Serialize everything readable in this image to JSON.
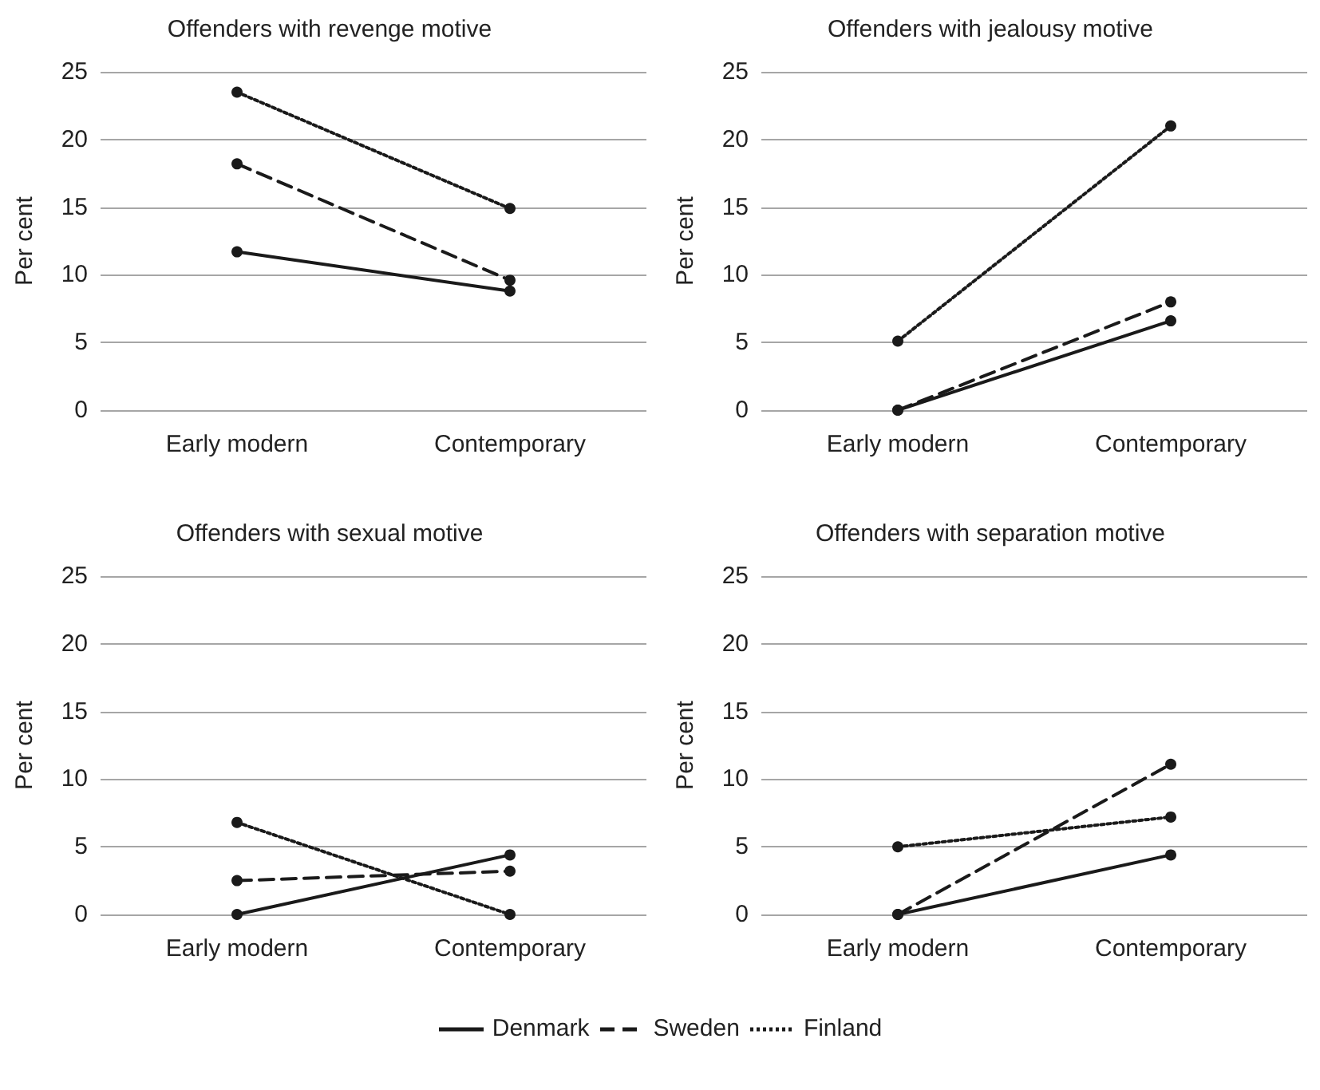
{
  "chart_data": [
    {
      "type": "line",
      "title": "Offenders with revenge motive",
      "ylabel": "Per cent",
      "categories": [
        "Early modern",
        "Contemporary"
      ],
      "ylim": [
        0,
        25
      ],
      "yticks": [
        0,
        5,
        10,
        15,
        20,
        25
      ],
      "grid": "y",
      "marker": "circle",
      "legend": "bottom",
      "series": [
        {
          "name": "Denmark",
          "color": "#1a1a1a",
          "line_style": "solid",
          "values": [
            11.7,
            8.8
          ]
        },
        {
          "name": "Sweden",
          "color": "#1a1a1a",
          "line_style": "dashed",
          "values": [
            18.2,
            9.6
          ]
        },
        {
          "name": "Finland",
          "color": "#1a1a1a",
          "line_style": "dotted",
          "values": [
            23.5,
            14.9
          ]
        }
      ]
    },
    {
      "type": "line",
      "title": "Offenders with jealousy motive",
      "ylabel": "Per cent",
      "categories": [
        "Early modern",
        "Contemporary"
      ],
      "ylim": [
        0,
        25
      ],
      "yticks": [
        0,
        5,
        10,
        15,
        20,
        25
      ],
      "grid": "y",
      "marker": "circle",
      "series": [
        {
          "color": "#1a1a1a",
          "line_style": "solid",
          "values": [
            0,
            6.6
          ]
        },
        {
          "color": "#1a1a1a",
          "line_style": "dashed",
          "values": [
            0,
            8.0
          ]
        },
        {
          "color": "#1a1a1a",
          "line_style": "dotted",
          "values": [
            5.1,
            21.0
          ]
        }
      ]
    },
    {
      "type": "line",
      "title": "Offenders with sexual motive",
      "ylabel": "Per cent",
      "categories": [
        "Early modern",
        "Contemporary"
      ],
      "ylim": [
        0,
        25
      ],
      "yticks": [
        0,
        5,
        10,
        15,
        20,
        25
      ],
      "grid": "y",
      "marker": "circle",
      "series": [
        {
          "color": "#1a1a1a",
          "line_style": "solid",
          "values": [
            0,
            4.4
          ]
        },
        {
          "color": "#1a1a1a",
          "line_style": "dashed",
          "values": [
            2.5,
            3.2
          ]
        },
        {
          "color": "#1a1a1a",
          "line_style": "dotted",
          "values": [
            6.8,
            0
          ]
        }
      ]
    },
    {
      "type": "line",
      "title": "Offenders with separation motive",
      "ylabel": "Per cent",
      "categories": [
        "Early modern",
        "Contemporary"
      ],
      "ylim": [
        0,
        25
      ],
      "yticks": [
        0,
        5,
        10,
        15,
        20,
        25
      ],
      "grid": "y",
      "marker": "circle",
      "series": [
        {
          "color": "#1a1a1a",
          "line_style": "solid",
          "values": [
            0,
            4.4
          ]
        },
        {
          "color": "#1a1a1a",
          "line_style": "dashed",
          "values": [
            0,
            11.1
          ]
        },
        {
          "color": "#1a1a1a",
          "line_style": "dotted",
          "values": [
            5.0,
            7.2
          ]
        }
      ]
    }
  ]
}
